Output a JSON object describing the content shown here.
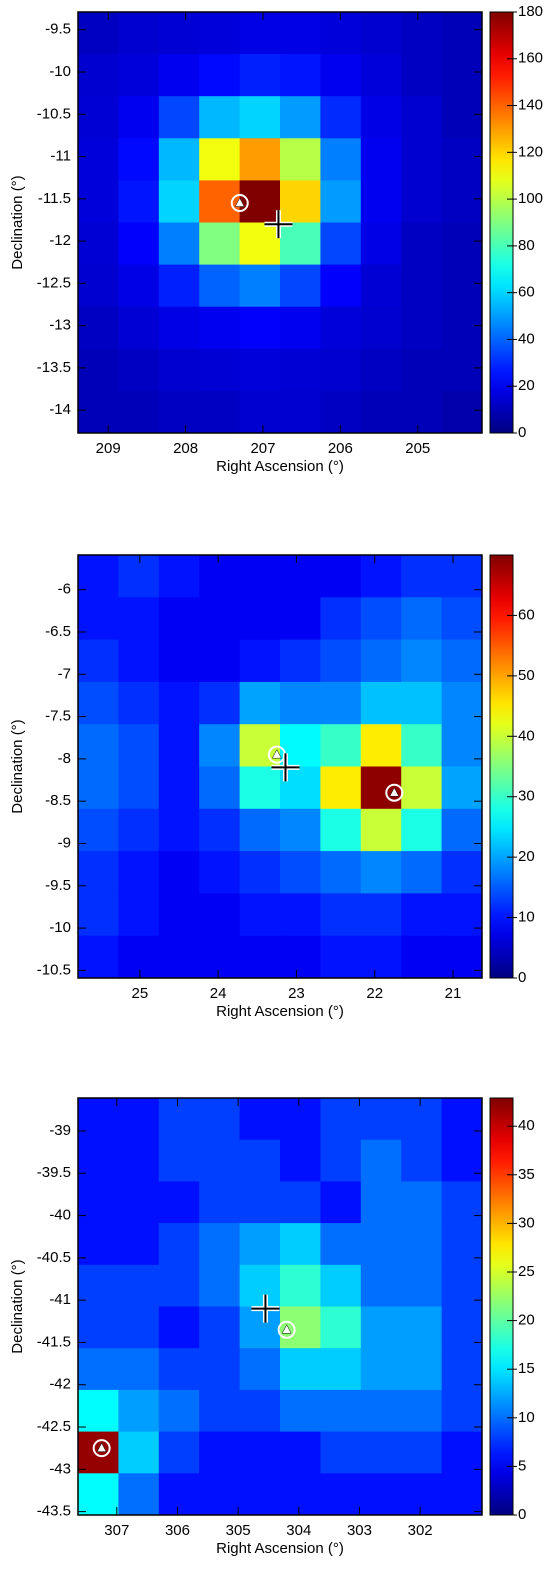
{
  "chart_data": [
    {
      "type": "heatmap",
      "xlabel": "Right Ascension (°)",
      "ylabel": "Declination (°)",
      "xlim": [
        209.39,
        204.17
      ],
      "ylim": [
        -14.27,
        -9.29
      ],
      "xticks": [
        209,
        208,
        207,
        206,
        205
      ],
      "yticks": [
        -9.5,
        -10,
        -10.5,
        -11,
        -11.5,
        -12,
        -12.5,
        -13,
        -13.5,
        -14
      ],
      "colormap": "jet",
      "clim": [
        0,
        180
      ],
      "cticks": [
        0,
        20,
        40,
        60,
        80,
        100,
        120,
        140,
        160,
        180
      ],
      "z": [
        [
          12,
          14,
          15,
          16,
          18,
          18,
          16,
          14,
          12,
          10
        ],
        [
          14,
          16,
          20,
          24,
          28,
          26,
          20,
          16,
          12,
          10
        ],
        [
          15,
          20,
          35,
          55,
          60,
          50,
          30,
          18,
          14,
          10
        ],
        [
          16,
          24,
          55,
          110,
          130,
          100,
          45,
          20,
          14,
          12
        ],
        [
          16,
          26,
          60,
          140,
          180,
          120,
          50,
          20,
          14,
          12
        ],
        [
          15,
          22,
          45,
          90,
          110,
          80,
          35,
          18,
          12,
          10
        ],
        [
          14,
          18,
          28,
          40,
          45,
          35,
          22,
          15,
          12,
          10
        ],
        [
          12,
          15,
          18,
          20,
          22,
          20,
          16,
          14,
          12,
          10
        ],
        [
          10,
          12,
          14,
          15,
          16,
          15,
          14,
          12,
          10,
          10
        ],
        [
          10,
          10,
          12,
          12,
          14,
          14,
          12,
          10,
          10,
          8
        ]
      ],
      "crosshair": {
        "x": 206.8,
        "y": -11.8
      },
      "sources": [
        {
          "x": 207.3,
          "y": -11.55
        }
      ]
    },
    {
      "type": "heatmap",
      "xlabel": "Right Ascension (°)",
      "ylabel": "Declination (°)",
      "xlim": [
        25.79,
        20.63
      ],
      "ylim": [
        -10.59,
        -5.59
      ],
      "xticks": [
        25,
        24,
        23,
        22,
        21
      ],
      "yticks": [
        -6,
        -6.5,
        -7,
        -7.5,
        -8,
        -8.5,
        -9,
        -9.5,
        -10,
        -10.5
      ],
      "colormap": "jet",
      "clim": [
        0,
        70
      ],
      "cticks": [
        0,
        10,
        20,
        30,
        40,
        50,
        60
      ],
      "z": [
        [
          10,
          12,
          10,
          8,
          8,
          8,
          8,
          10,
          12,
          12
        ],
        [
          10,
          10,
          8,
          8,
          8,
          8,
          12,
          14,
          16,
          14
        ],
        [
          12,
          10,
          8,
          8,
          10,
          12,
          14,
          16,
          18,
          16
        ],
        [
          14,
          12,
          10,
          12,
          20,
          18,
          18,
          22,
          22,
          18
        ],
        [
          16,
          14,
          10,
          18,
          40,
          26,
          30,
          45,
          30,
          18
        ],
        [
          16,
          14,
          10,
          16,
          28,
          24,
          45,
          69,
          40,
          20
        ],
        [
          14,
          12,
          10,
          12,
          16,
          18,
          28,
          40,
          28,
          16
        ],
        [
          12,
          10,
          8,
          10,
          12,
          14,
          16,
          18,
          16,
          12
        ],
        [
          12,
          10,
          8,
          8,
          10,
          10,
          12,
          12,
          10,
          10
        ],
        [
          10,
          8,
          8,
          8,
          8,
          8,
          10,
          10,
          8,
          8
        ]
      ],
      "crosshair": {
        "x": 23.14,
        "y": -8.1
      },
      "sources": [
        {
          "x": 23.25,
          "y": -7.95
        },
        {
          "x": 21.75,
          "y": -8.4
        }
      ]
    },
    {
      "type": "heatmap",
      "xlabel": "Right Ascension (°)",
      "ylabel": "Declination (°)",
      "xlim": [
        307.64,
        300.98
      ],
      "ylim": [
        -43.54,
        -38.61
      ],
      "xticks": [
        307,
        306,
        305,
        304,
        303,
        302
      ],
      "yticks": [
        -39,
        -39.5,
        -40,
        -40.5,
        -41,
        -41.5,
        -42,
        -42.5,
        -43,
        -43.5
      ],
      "colormap": "jet",
      "clim": [
        0,
        42.9
      ],
      "cticks": [
        0,
        5,
        10,
        15,
        20,
        25,
        30,
        35,
        40
      ],
      "z": [
        [
          6,
          6,
          8,
          8,
          6,
          6,
          8,
          8,
          8,
          6
        ],
        [
          6,
          6,
          8,
          8,
          8,
          6,
          8,
          10,
          8,
          6
        ],
        [
          6,
          6,
          6,
          8,
          8,
          8,
          6,
          10,
          10,
          8
        ],
        [
          6,
          6,
          8,
          10,
          12,
          14,
          10,
          10,
          10,
          8
        ],
        [
          8,
          8,
          8,
          10,
          14,
          18,
          14,
          10,
          10,
          8
        ],
        [
          8,
          8,
          6,
          8,
          12,
          22,
          18,
          12,
          12,
          8
        ],
        [
          10,
          10,
          8,
          8,
          10,
          14,
          14,
          12,
          12,
          8
        ],
        [
          16,
          12,
          10,
          8,
          8,
          10,
          10,
          10,
          10,
          8
        ],
        [
          42,
          14,
          8,
          6,
          6,
          6,
          8,
          8,
          8,
          6
        ],
        [
          16,
          10,
          6,
          6,
          6,
          6,
          6,
          6,
          6,
          6
        ]
      ],
      "crosshair": {
        "x": 304.55,
        "y": -41.1
      },
      "sources": [
        {
          "x": 307.25,
          "y": -42.75
        },
        {
          "x": 304.2,
          "y": -41.35
        }
      ]
    }
  ]
}
